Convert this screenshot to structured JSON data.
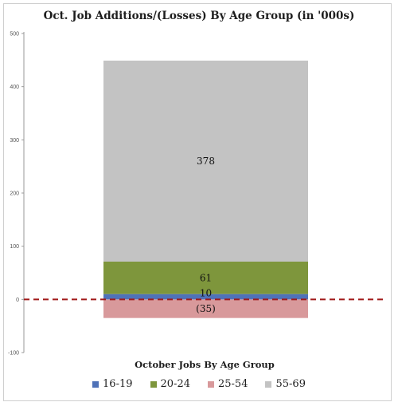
{
  "chart_data": {
    "type": "bar",
    "stacked": true,
    "title": "Oct. Job Additions/(Losses) By Age Group (in '000s)",
    "xlabel": "October Jobs By Age Group",
    "ylabel": "",
    "ylim": [
      -100,
      500
    ],
    "yticks": [
      500,
      400,
      300,
      200,
      100,
      0,
      -100
    ],
    "categories": [
      ""
    ],
    "series": [
      {
        "name": "16-19",
        "values": [
          10
        ],
        "label": "10",
        "color": "#4f72b8"
      },
      {
        "name": "20-24",
        "values": [
          61
        ],
        "label": "61",
        "color": "#7e963c"
      },
      {
        "name": "25-54",
        "values": [
          -35
        ],
        "label": "(35)",
        "color": "#d8999b"
      },
      {
        "name": "55-69",
        "values": [
          378
        ],
        "label": "378",
        "color": "#c3c3c3"
      }
    ],
    "zero_line": {
      "color": "#a01818",
      "style": "dashed"
    },
    "legend_position": "bottom",
    "grid": false
  }
}
